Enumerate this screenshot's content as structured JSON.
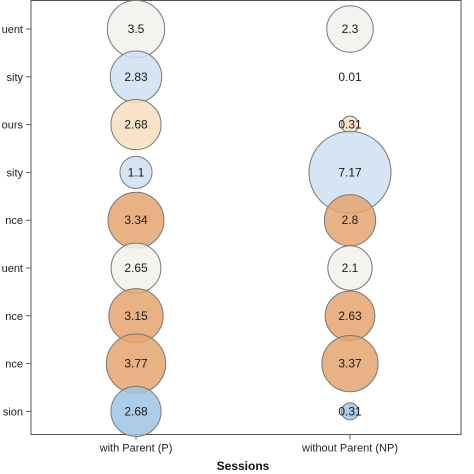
{
  "chart_data": {
    "type": "scatter",
    "xlabel": "Sessions",
    "categories": [
      "with Parent (P)",
      "without Parent (NP)"
    ],
    "rows": [
      "uent",
      "sity",
      "ours",
      "sity",
      "nce",
      "uent",
      "nce",
      "nce",
      "sion"
    ],
    "series": [
      {
        "values": [
          3.5,
          2.83,
          2.68,
          1.1,
          3.34,
          2.65,
          3.15,
          3.77,
          2.68
        ]
      },
      {
        "values": [
          2.3,
          0.01,
          0.31,
          7.17,
          2.8,
          2.1,
          2.63,
          3.37,
          0.31
        ]
      }
    ],
    "bubble_colors": [
      [
        "#f3f1ed",
        "#cfe1f1",
        "#f8dfc0",
        "#cfe1f1",
        "#e5a470",
        "#f3f1ed",
        "#e5a470",
        "#e5a470",
        "#9ec4e3"
      ],
      [
        "#f3f1ed",
        "#f3f1ed",
        "#f8dfc0",
        "#cfe1f1",
        "#e5a470",
        "#f3f1ed",
        "#e5a470",
        "#e5a470",
        "#9ec4e3"
      ]
    ],
    "grid": false,
    "legend": "none"
  }
}
